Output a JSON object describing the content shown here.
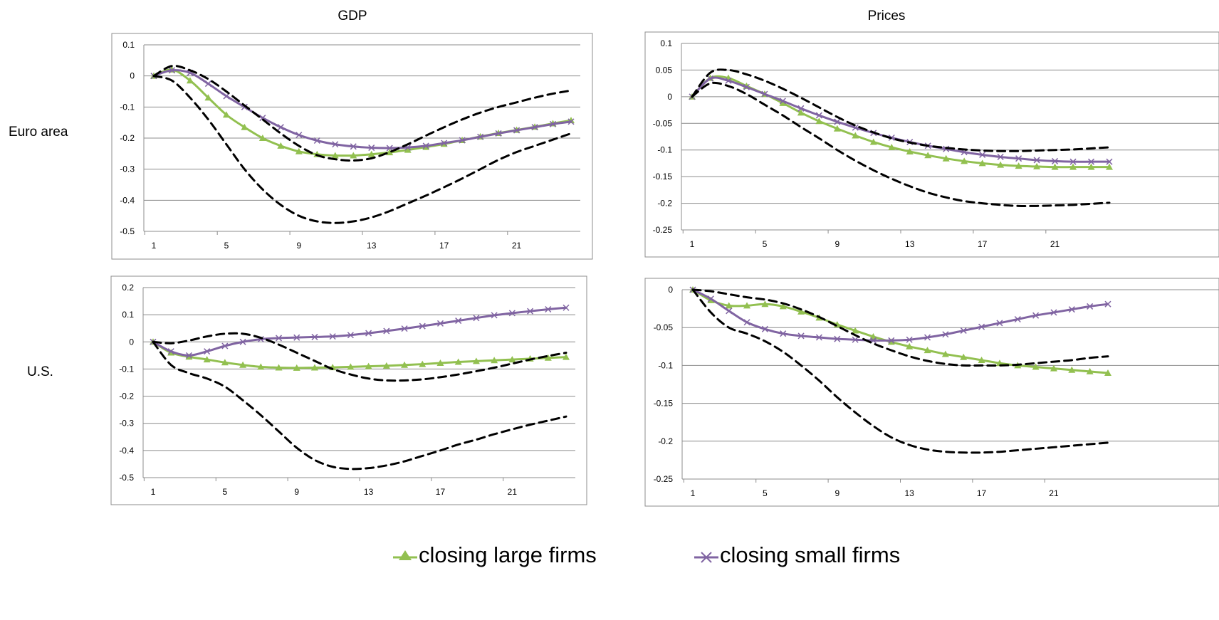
{
  "column_titles": [
    "GDP",
    "Prices"
  ],
  "row_labels": [
    "Euro area",
    "U.S."
  ],
  "legend": {
    "large_label": "closing large firms",
    "small_label": "closing small firms"
  },
  "colors": {
    "large": "#92C050",
    "small": "#8064A2",
    "bands": "#000000",
    "grid": "#8c8c8c"
  },
  "chart_data": [
    {
      "type": "line",
      "title": "GDP",
      "row": "Euro area",
      "x_ticks": [
        1,
        5,
        9,
        13,
        17,
        21
      ],
      "xlim": [
        1,
        24
      ],
      "ylim": [
        -0.5,
        0.1
      ],
      "y_ticks": [
        0.1,
        0,
        -0.1,
        -0.2,
        -0.3,
        -0.4,
        -0.5
      ],
      "y_tick_labels": [
        "0.1",
        "0",
        "-0.1",
        "-0.2",
        "-0.3",
        "-0.4",
        "-0.5"
      ],
      "grid": true,
      "series": [
        {
          "key": "large",
          "name": "closing large firms",
          "marker": "triangle",
          "values": [
            0,
            0.02,
            -0.015,
            -0.07,
            -0.125,
            -0.165,
            -0.2,
            -0.225,
            -0.243,
            -0.252,
            -0.256,
            -0.256,
            -0.252,
            -0.246,
            -0.238,
            -0.229,
            -0.219,
            -0.207,
            -0.195,
            -0.184,
            -0.174,
            -0.164,
            -0.153,
            -0.143
          ]
        },
        {
          "key": "small",
          "name": "closing small firms",
          "marker": "x",
          "values": [
            0,
            0.018,
            0.01,
            -0.025,
            -0.065,
            -0.1,
            -0.135,
            -0.165,
            -0.19,
            -0.208,
            -0.22,
            -0.227,
            -0.231,
            -0.232,
            -0.23,
            -0.225,
            -0.216,
            -0.207,
            -0.196,
            -0.185,
            -0.175,
            -0.165,
            -0.155,
            -0.147
          ]
        },
        {
          "key": "upper",
          "style": "dashed",
          "values": [
            0,
            0.032,
            0.018,
            -0.01,
            -0.05,
            -0.095,
            -0.14,
            -0.185,
            -0.225,
            -0.255,
            -0.268,
            -0.272,
            -0.265,
            -0.245,
            -0.22,
            -0.192,
            -0.165,
            -0.14,
            -0.118,
            -0.1,
            -0.085,
            -0.07,
            -0.057,
            -0.047
          ]
        },
        {
          "key": "lower",
          "style": "dashed",
          "values": [
            0,
            -0.015,
            -0.07,
            -0.14,
            -0.22,
            -0.3,
            -0.365,
            -0.415,
            -0.45,
            -0.468,
            -0.473,
            -0.468,
            -0.455,
            -0.435,
            -0.41,
            -0.385,
            -0.358,
            -0.33,
            -0.3,
            -0.27,
            -0.245,
            -0.225,
            -0.205,
            -0.185
          ]
        }
      ]
    },
    {
      "type": "line",
      "title": "Prices",
      "row": "Euro area",
      "x_ticks": [
        1,
        5,
        9,
        13,
        17,
        21
      ],
      "xlim": [
        1,
        24
      ],
      "ylim": [
        -0.25,
        0.1
      ],
      "y_ticks": [
        0.1,
        0.05,
        0,
        -0.05,
        -0.1,
        -0.15,
        -0.2,
        -0.25
      ],
      "y_tick_labels": [
        "0.1",
        "0.05",
        "0",
        "-0.05",
        "-0.1",
        "-0.15",
        "-0.2",
        "-0.25"
      ],
      "grid": true,
      "series": [
        {
          "key": "large",
          "name": "closing large firms",
          "marker": "triangle",
          "values": [
            0,
            0.035,
            0.035,
            0.02,
            0.005,
            -0.012,
            -0.03,
            -0.046,
            -0.06,
            -0.073,
            -0.085,
            -0.095,
            -0.103,
            -0.11,
            -0.116,
            -0.121,
            -0.125,
            -0.128,
            -0.13,
            -0.131,
            -0.132,
            -0.132,
            -0.132,
            -0.132
          ]
        },
        {
          "key": "small",
          "name": "closing small firms",
          "marker": "x",
          "values": [
            0,
            0.034,
            0.03,
            0.018,
            0.005,
            -0.008,
            -0.022,
            -0.035,
            -0.047,
            -0.058,
            -0.068,
            -0.077,
            -0.085,
            -0.092,
            -0.098,
            -0.104,
            -0.109,
            -0.113,
            -0.116,
            -0.119,
            -0.121,
            -0.122,
            -0.122,
            -0.122
          ]
        },
        {
          "key": "upper",
          "style": "dashed",
          "values": [
            0,
            0.045,
            0.05,
            0.042,
            0.03,
            0.015,
            -0.002,
            -0.02,
            -0.038,
            -0.054,
            -0.067,
            -0.078,
            -0.086,
            -0.092,
            -0.096,
            -0.099,
            -0.101,
            -0.102,
            -0.102,
            -0.101,
            -0.1,
            -0.099,
            -0.097,
            -0.095
          ]
        },
        {
          "key": "lower",
          "style": "dashed",
          "values": [
            0,
            0.025,
            0.02,
            0.005,
            -0.015,
            -0.035,
            -0.057,
            -0.078,
            -0.1,
            -0.12,
            -0.138,
            -0.154,
            -0.168,
            -0.18,
            -0.189,
            -0.196,
            -0.2,
            -0.203,
            -0.205,
            -0.205,
            -0.204,
            -0.203,
            -0.201,
            -0.199
          ]
        }
      ]
    },
    {
      "type": "line",
      "title": "GDP",
      "row": "U.S.",
      "x_ticks": [
        1,
        5,
        9,
        13,
        17,
        21
      ],
      "xlim": [
        1,
        24
      ],
      "ylim": [
        -0.5,
        0.2
      ],
      "y_ticks": [
        0.2,
        0.1,
        0,
        -0.1,
        -0.2,
        -0.3,
        -0.4,
        -0.5
      ],
      "y_tick_labels": [
        "0.2",
        "0.1",
        "0",
        "-0.1",
        "-0.2",
        "-0.3",
        "-0.4",
        "-0.5"
      ],
      "grid": true,
      "series": [
        {
          "key": "large",
          "name": "closing large firms",
          "marker": "triangle",
          "values": [
            0,
            -0.04,
            -0.055,
            -0.065,
            -0.076,
            -0.085,
            -0.092,
            -0.095,
            -0.096,
            -0.095,
            -0.094,
            -0.092,
            -0.09,
            -0.088,
            -0.085,
            -0.082,
            -0.078,
            -0.074,
            -0.071,
            -0.068,
            -0.065,
            -0.062,
            -0.059,
            -0.056
          ]
        },
        {
          "key": "small",
          "name": "closing small firms",
          "marker": "x",
          "values": [
            0,
            -0.035,
            -0.05,
            -0.035,
            -0.015,
            0,
            0.01,
            0.014,
            0.016,
            0.018,
            0.02,
            0.025,
            0.032,
            0.04,
            0.049,
            0.058,
            0.068,
            0.078,
            0.088,
            0.098,
            0.106,
            0.113,
            0.12,
            0.126
          ]
        },
        {
          "key": "upper",
          "style": "dashed",
          "values": [
            0,
            -0.005,
            0.005,
            0.02,
            0.03,
            0.03,
            0.015,
            -0.01,
            -0.04,
            -0.07,
            -0.1,
            -0.12,
            -0.135,
            -0.142,
            -0.142,
            -0.138,
            -0.13,
            -0.12,
            -0.108,
            -0.095,
            -0.08,
            -0.065,
            -0.052,
            -0.04
          ]
        },
        {
          "key": "lower",
          "style": "dashed",
          "values": [
            0,
            -0.085,
            -0.115,
            -0.135,
            -0.165,
            -0.215,
            -0.27,
            -0.33,
            -0.39,
            -0.435,
            -0.46,
            -0.468,
            -0.465,
            -0.455,
            -0.44,
            -0.42,
            -0.4,
            -0.378,
            -0.36,
            -0.34,
            -0.322,
            -0.305,
            -0.29,
            -0.275
          ]
        }
      ]
    },
    {
      "type": "line",
      "title": "Prices",
      "row": "U.S.",
      "x_ticks": [
        1,
        5,
        9,
        13,
        17,
        21
      ],
      "xlim": [
        1,
        24
      ],
      "ylim": [
        -0.25,
        0
      ],
      "y_ticks": [
        0,
        -0.05,
        -0.1,
        -0.15,
        -0.2,
        -0.25
      ],
      "y_tick_labels": [
        "0",
        "-0.05",
        "-0.1",
        "-0.15",
        "-0.2",
        "-0.25"
      ],
      "grid": true,
      "series": [
        {
          "key": "large",
          "name": "closing large firms",
          "marker": "triangle",
          "values": [
            0,
            -0.014,
            -0.021,
            -0.021,
            -0.019,
            -0.022,
            -0.029,
            -0.037,
            -0.046,
            -0.054,
            -0.062,
            -0.069,
            -0.075,
            -0.08,
            -0.085,
            -0.089,
            -0.093,
            -0.097,
            -0.1,
            -0.102,
            -0.104,
            -0.106,
            -0.108,
            -0.11
          ]
        },
        {
          "key": "small",
          "name": "closing small firms",
          "marker": "x",
          "values": [
            0,
            -0.012,
            -0.028,
            -0.043,
            -0.052,
            -0.058,
            -0.061,
            -0.063,
            -0.065,
            -0.066,
            -0.067,
            -0.067,
            -0.066,
            -0.063,
            -0.059,
            -0.054,
            -0.049,
            -0.044,
            -0.039,
            -0.034,
            -0.03,
            -0.026,
            -0.022,
            -0.019
          ]
        },
        {
          "key": "upper",
          "style": "dashed",
          "values": [
            0,
            -0.002,
            -0.006,
            -0.01,
            -0.013,
            -0.018,
            -0.026,
            -0.036,
            -0.048,
            -0.06,
            -0.071,
            -0.08,
            -0.088,
            -0.094,
            -0.098,
            -0.1,
            -0.1,
            -0.1,
            -0.099,
            -0.097,
            -0.095,
            -0.093,
            -0.09,
            -0.088
          ]
        },
        {
          "key": "lower",
          "style": "dashed",
          "values": [
            0,
            -0.03,
            -0.05,
            -0.058,
            -0.068,
            -0.082,
            -0.1,
            -0.12,
            -0.142,
            -0.162,
            -0.18,
            -0.195,
            -0.205,
            -0.211,
            -0.214,
            -0.215,
            -0.215,
            -0.214,
            -0.212,
            -0.21,
            -0.208,
            -0.206,
            -0.204,
            -0.202
          ]
        }
      ]
    }
  ]
}
